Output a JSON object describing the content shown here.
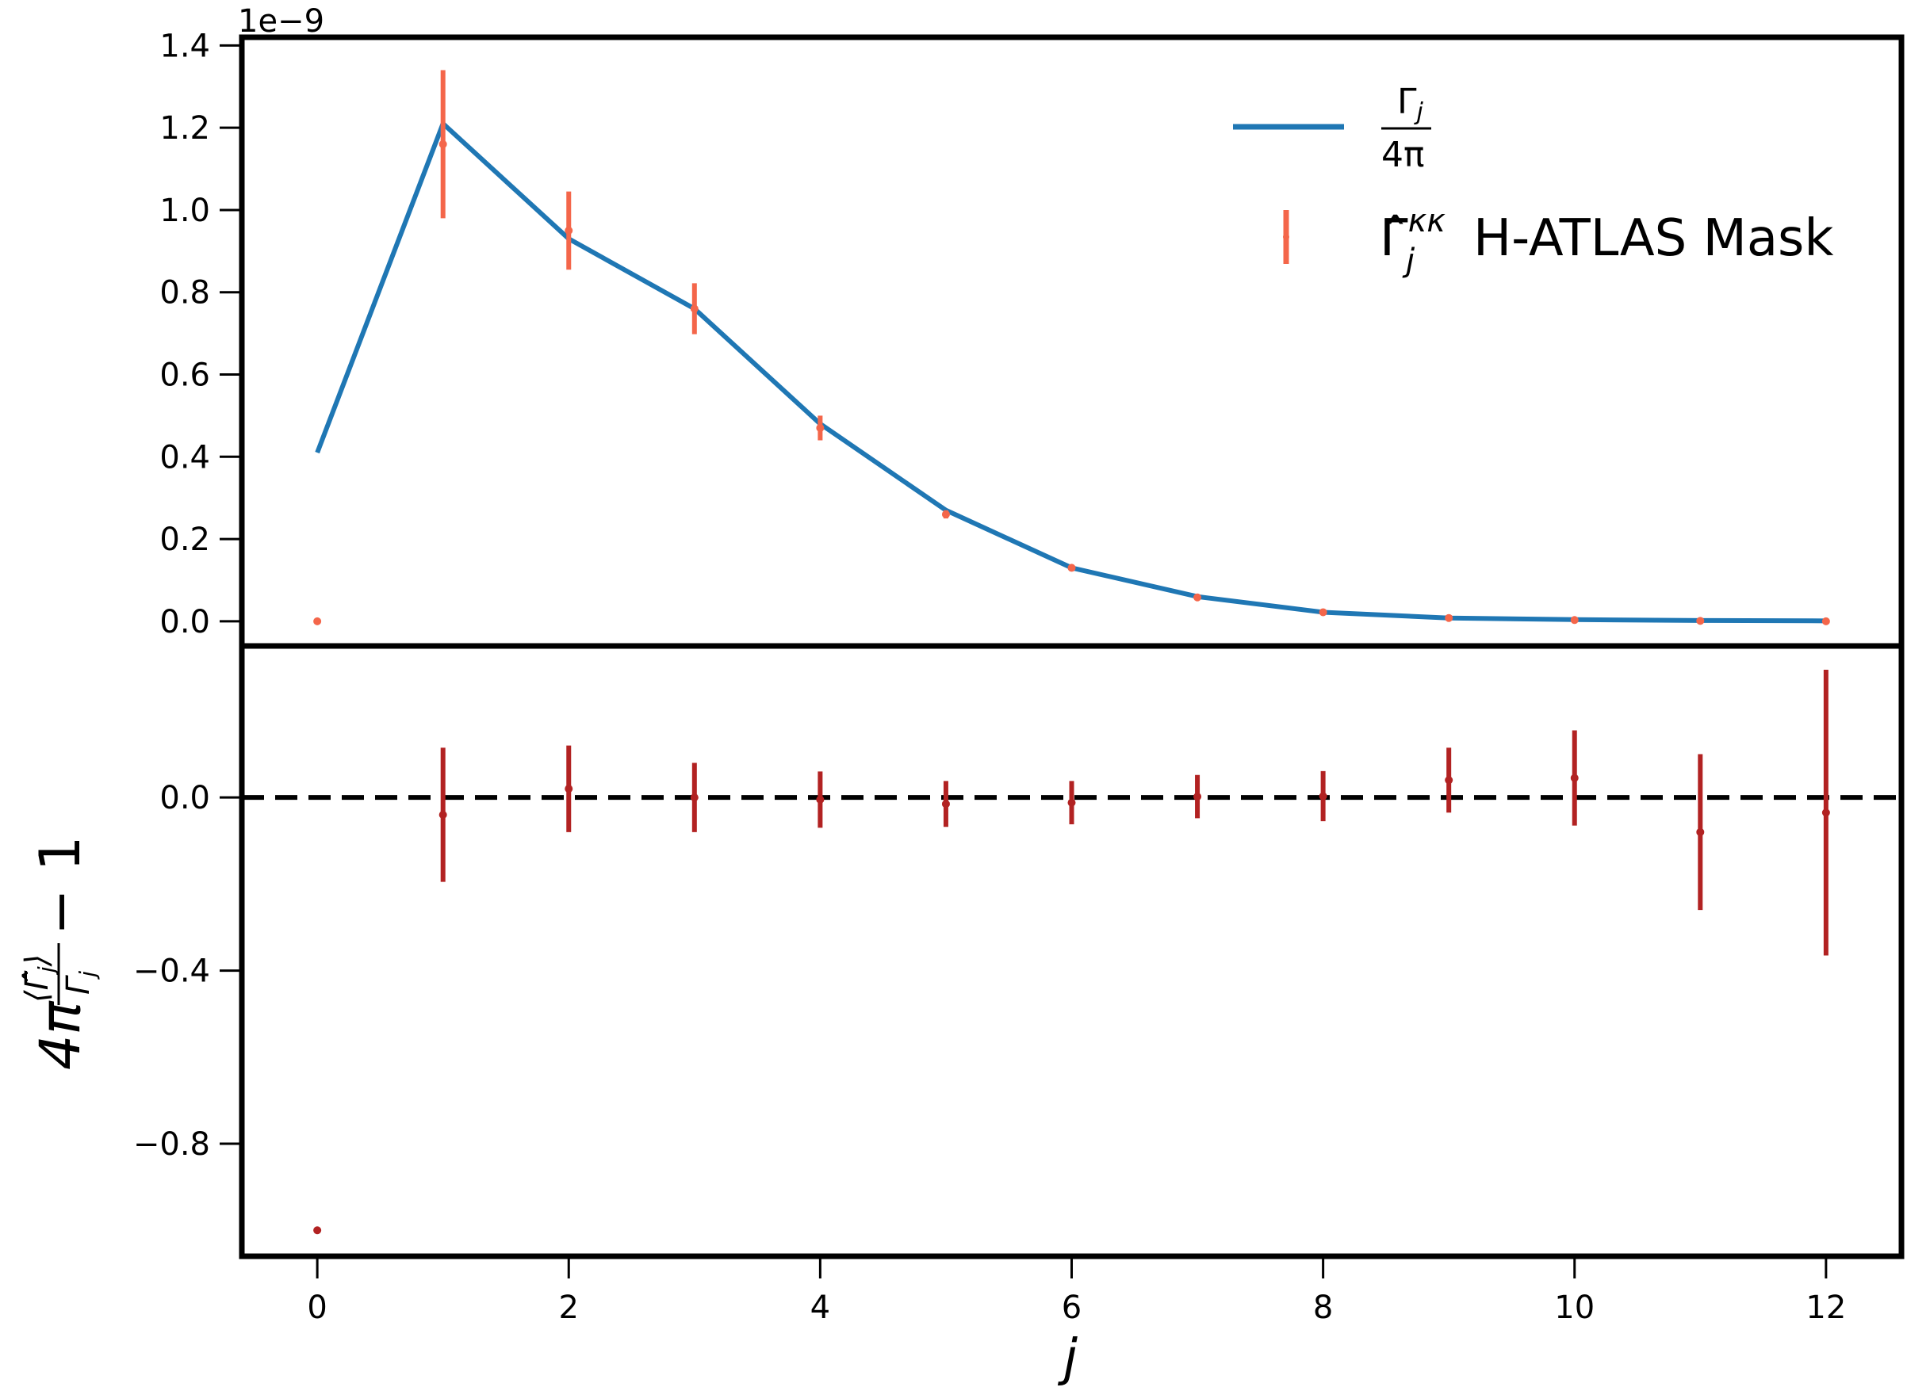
{
  "colors": {
    "model_line": "#1f77b4",
    "measured": "#f4664a",
    "residual": "#b22222",
    "zero_line": "#000000",
    "frame": "#000000"
  },
  "chart_data": [
    {
      "type": "line",
      "panel": "top",
      "offset_text": "1e−9",
      "y_scale": 1e-09,
      "xlim": [
        -0.6,
        12.6
      ],
      "ylim": [
        -0.06,
        1.42
      ],
      "yticks": [
        0.0,
        0.2,
        0.4,
        0.6,
        0.8,
        1.0,
        1.2,
        1.4
      ],
      "ytick_labels": [
        "0.0",
        "0.2",
        "0.4",
        "0.6",
        "0.8",
        "1.0",
        "1.2",
        "1.4"
      ],
      "legend_position": "top-right",
      "series": [
        {
          "name": "Γj / 4π",
          "legend_label": {
            "numerator": "Γ",
            "numerator_sub": "j",
            "denominator": "4π"
          },
          "kind": "line",
          "x": [
            0,
            1,
            2,
            3,
            4,
            5,
            6,
            7,
            8,
            9,
            10,
            11,
            12
          ],
          "y": [
            0.41,
            1.21,
            0.93,
            0.76,
            0.48,
            0.27,
            0.13,
            0.06,
            0.022,
            0.008,
            0.004,
            0.002,
            0.001
          ]
        },
        {
          "name": "Γ̂jκκ H-ATLAS Mask",
          "legend_label": {
            "symbol": "Γ̂",
            "sub": "j",
            "sup": "κκ",
            "text": "H-ATLAS Mask"
          },
          "kind": "errorbar",
          "x": [
            0,
            1,
            2,
            3,
            4,
            5,
            6,
            7,
            8,
            9,
            10,
            11,
            12
          ],
          "y": [
            0.0,
            1.16,
            0.95,
            0.76,
            0.47,
            0.26,
            0.13,
            0.058,
            0.022,
            0.008,
            0.003,
            0.001,
            0.0
          ],
          "yerr": [
            0.0,
            0.18,
            0.095,
            0.062,
            0.03,
            0.01,
            0.005,
            0.002,
            0.001,
            0.0005,
            0.0003,
            0.0002,
            0.0001
          ]
        }
      ]
    },
    {
      "type": "scatter",
      "panel": "bottom",
      "xlabel": "j",
      "ylabel": "4π⟨Γ̂j⟩/Γj − 1",
      "xlim": [
        -0.6,
        12.6
      ],
      "ylim": [
        -1.06,
        0.35
      ],
      "xticks": [
        0,
        2,
        4,
        6,
        8,
        10,
        12
      ],
      "xtick_labels": [
        "0",
        "2",
        "4",
        "6",
        "8",
        "10",
        "12"
      ],
      "yticks": [
        0.0,
        -0.4,
        -0.8
      ],
      "ytick_labels": [
        "0.0",
        "−0.4",
        "−0.8"
      ],
      "reference_line": {
        "y": 0.0,
        "style": "dashed"
      },
      "series": [
        {
          "kind": "errorbar",
          "x": [
            0,
            1,
            2,
            3,
            4,
            5,
            6,
            7,
            8,
            9,
            10,
            11,
            12
          ],
          "y": [
            -1.0,
            -0.04,
            0.02,
            0.0,
            -0.005,
            -0.015,
            -0.012,
            0.002,
            0.003,
            0.04,
            0.045,
            -0.08,
            -0.035
          ],
          "yerr": [
            0.0,
            0.155,
            0.1,
            0.08,
            0.065,
            0.053,
            0.05,
            0.05,
            0.058,
            0.075,
            0.11,
            0.18,
            0.33
          ]
        }
      ]
    }
  ]
}
